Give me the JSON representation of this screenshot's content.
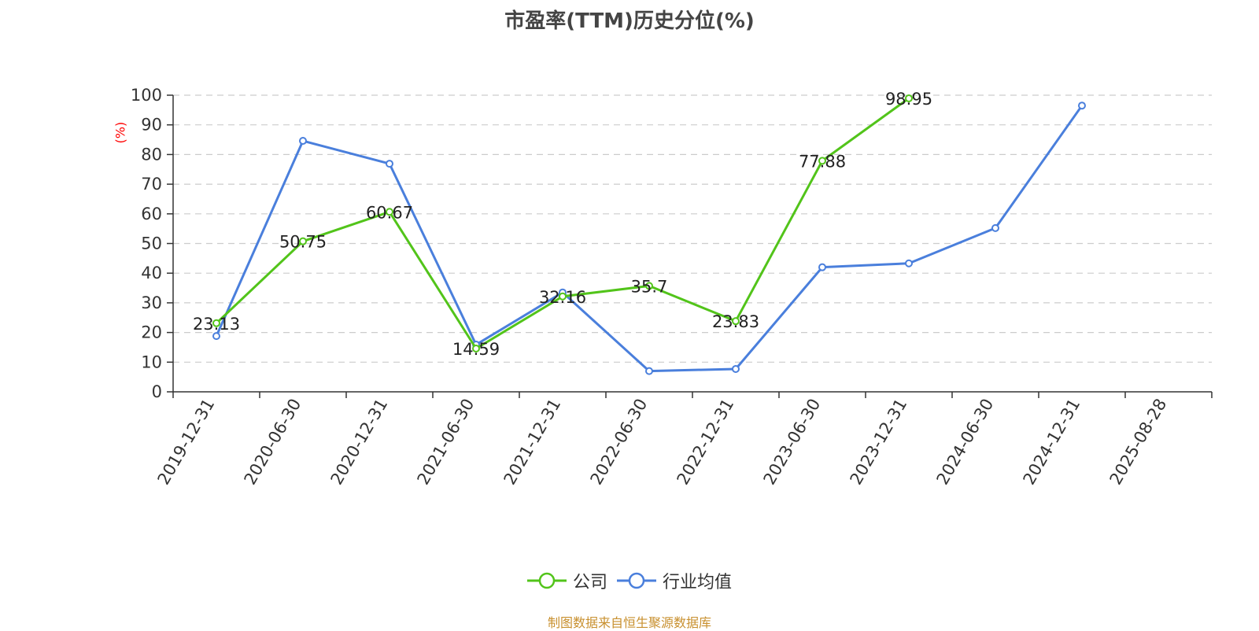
{
  "chart_data": {
    "type": "line",
    "title": "市盈率(TTM)历史分位(%)",
    "ylabel": "(%)",
    "ylim": [
      0,
      100
    ],
    "yticks": [
      0,
      10,
      20,
      30,
      40,
      50,
      60,
      70,
      80,
      90,
      100
    ],
    "grid": true,
    "legend_position": "bottom",
    "categories": [
      "2019-12-31",
      "2020-06-30",
      "2020-12-31",
      "2021-06-30",
      "2021-12-31",
      "2022-06-30",
      "2022-12-31",
      "2023-06-30",
      "2023-12-31",
      "2024-06-30",
      "2024-12-31",
      "2025-08-28"
    ],
    "series": [
      {
        "name": "公司",
        "color": "#52c41a",
        "values": [
          23.13,
          50.75,
          60.67,
          14.59,
          32.16,
          35.7,
          23.83,
          77.88,
          98.95,
          null,
          null,
          null
        ],
        "data_labels": [
          "23.13",
          "50.75",
          "60.67",
          "14.59",
          "32.16",
          "35.7",
          "23.83",
          "77.88",
          "98.95"
        ]
      },
      {
        "name": "行业均值",
        "color": "#4a7fdc",
        "values": [
          18.8,
          84.6,
          76.9,
          15.9,
          33.5,
          7.0,
          7.7,
          42.0,
          43.3,
          55.2,
          96.5,
          null
        ]
      }
    ]
  },
  "source": "制图数据来自恒生聚源数据库"
}
